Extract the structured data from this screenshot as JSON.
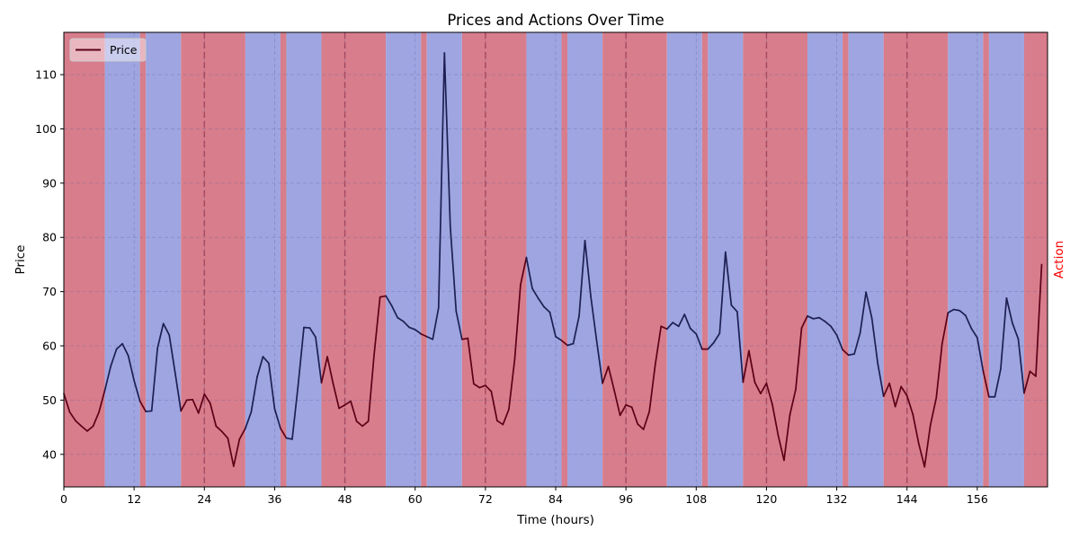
{
  "chart_data": {
    "type": "line",
    "title": "Prices and Actions Over Time",
    "xlabel": "Time (hours)",
    "ylabel": "Price",
    "y2label": "Action",
    "xlim": [
      0,
      168
    ],
    "ylim": [
      34,
      117.8
    ],
    "xticks": [
      0,
      12,
      24,
      36,
      48,
      60,
      72,
      84,
      96,
      108,
      120,
      132,
      144,
      156
    ],
    "yticks": [
      40,
      50,
      60,
      70,
      80,
      90,
      100,
      110
    ],
    "grid": true,
    "legend_placement": "top-left",
    "day_boundaries": [
      24,
      48,
      72,
      96,
      120,
      144
    ],
    "action_colors": {
      "sell": "#d77d8c",
      "buy": "#9ea5e0"
    },
    "line_colors": {
      "sell": "#5c0016",
      "buy": "#1d1f52"
    },
    "action_segments": [
      {
        "start": 0,
        "end": 7,
        "action": "sell"
      },
      {
        "start": 7,
        "end": 13,
        "action": "buy"
      },
      {
        "start": 13,
        "end": 14,
        "action": "sell"
      },
      {
        "start": 14,
        "end": 20,
        "action": "buy"
      },
      {
        "start": 20,
        "end": 31,
        "action": "sell"
      },
      {
        "start": 31,
        "end": 37,
        "action": "buy"
      },
      {
        "start": 37,
        "end": 38,
        "action": "sell"
      },
      {
        "start": 38,
        "end": 44,
        "action": "buy"
      },
      {
        "start": 44,
        "end": 55,
        "action": "sell"
      },
      {
        "start": 55,
        "end": 61,
        "action": "buy"
      },
      {
        "start": 61,
        "end": 62,
        "action": "sell"
      },
      {
        "start": 62,
        "end": 68,
        "action": "buy"
      },
      {
        "start": 68,
        "end": 79,
        "action": "sell"
      },
      {
        "start": 79,
        "end": 85,
        "action": "buy"
      },
      {
        "start": 85,
        "end": 86,
        "action": "sell"
      },
      {
        "start": 86,
        "end": 92,
        "action": "buy"
      },
      {
        "start": 92,
        "end": 103,
        "action": "sell"
      },
      {
        "start": 103,
        "end": 109,
        "action": "buy"
      },
      {
        "start": 109,
        "end": 110,
        "action": "sell"
      },
      {
        "start": 110,
        "end": 116,
        "action": "buy"
      },
      {
        "start": 116,
        "end": 127,
        "action": "sell"
      },
      {
        "start": 127,
        "end": 133,
        "action": "buy"
      },
      {
        "start": 133,
        "end": 134,
        "action": "sell"
      },
      {
        "start": 134,
        "end": 140,
        "action": "buy"
      },
      {
        "start": 140,
        "end": 151,
        "action": "sell"
      },
      {
        "start": 151,
        "end": 157,
        "action": "buy"
      },
      {
        "start": 157,
        "end": 158,
        "action": "sell"
      },
      {
        "start": 158,
        "end": 164,
        "action": "buy"
      },
      {
        "start": 164,
        "end": 168,
        "action": "sell"
      }
    ],
    "series": [
      {
        "name": "Price",
        "x": [
          0,
          1,
          2,
          3,
          4,
          5,
          6,
          7,
          8,
          9,
          10,
          11,
          12,
          13,
          14,
          15,
          16,
          17,
          18,
          19,
          20,
          21,
          22,
          23,
          24,
          25,
          26,
          27,
          28,
          29,
          30,
          31,
          32,
          33,
          34,
          35,
          36,
          37,
          38,
          39,
          40,
          41,
          42,
          43,
          44,
          45,
          46,
          47,
          48,
          49,
          50,
          51,
          52,
          53,
          54,
          55,
          56,
          57,
          58,
          59,
          60,
          61,
          62,
          63,
          64,
          65,
          66,
          67,
          68,
          69,
          70,
          71,
          72,
          73,
          74,
          75,
          76,
          77,
          78,
          79,
          80,
          81,
          82,
          83,
          84,
          85,
          86,
          87,
          88,
          89,
          90,
          91,
          92,
          93,
          94,
          95,
          96,
          97,
          98,
          99,
          100,
          101,
          102,
          103,
          104,
          105,
          106,
          107,
          108,
          109,
          110,
          111,
          112,
          113,
          114,
          115,
          116,
          117,
          118,
          119,
          120,
          121,
          122,
          123,
          124,
          125,
          126,
          127,
          128,
          129,
          130,
          131,
          132,
          133,
          134,
          135,
          136,
          137,
          138,
          139,
          140,
          141,
          142,
          143,
          144,
          145,
          146,
          147,
          148,
          149,
          150,
          151,
          152,
          153,
          154,
          155,
          156,
          157,
          158,
          159,
          160,
          161,
          162,
          163,
          164,
          165,
          166,
          167
        ],
        "values": [
          51.2,
          47.8,
          46.2,
          45.2,
          44.3,
          45.2,
          47.8,
          51.8,
          56.2,
          59.4,
          60.4,
          58.2,
          53.6,
          49.8,
          47.9,
          48.0,
          59.6,
          64.1,
          62.0,
          55.1,
          48.0,
          50.0,
          50.1,
          47.6,
          51.1,
          49.4,
          45.2,
          44.2,
          43.0,
          37.8,
          42.8,
          44.8,
          47.8,
          54.2,
          58.0,
          56.8,
          48.4,
          44.8,
          43.0,
          42.8,
          52.6,
          63.4,
          63.3,
          61.6,
          53.2,
          58.0,
          53.0,
          48.5,
          49.1,
          49.8,
          46.1,
          45.2,
          46.1,
          58.5,
          69.0,
          69.2,
          67.4,
          65.2,
          64.5,
          63.4,
          63.0,
          62.2,
          61.7,
          61.2,
          67.0,
          114.0,
          82.0,
          66.4,
          61.2,
          61.4,
          53.0,
          52.3,
          52.7,
          51.6,
          46.2,
          45.5,
          48.3,
          57.5,
          71.3,
          76.3,
          70.6,
          68.8,
          67.2,
          66.2,
          61.7,
          61.0,
          60.1,
          60.4,
          65.5,
          79.4,
          69.1,
          60.9,
          53.1,
          56.2,
          51.8,
          47.2,
          49.1,
          48.7,
          45.6,
          44.6,
          47.9,
          56.5,
          63.6,
          63.1,
          64.3,
          63.6,
          65.8,
          63.2,
          62.2,
          59.4,
          59.4,
          60.6,
          62.3,
          77.3,
          67.5,
          66.3,
          53.3,
          59.1,
          53.3,
          51.2,
          53.1,
          49.2,
          43.5,
          38.9,
          47.3,
          52.0,
          63.3,
          65.5,
          65.0,
          65.2,
          64.5,
          63.6,
          62.0,
          59.3,
          58.3,
          58.5,
          62.4,
          69.9,
          65.1,
          56.8,
          50.7,
          53.1,
          48.8,
          52.5,
          50.8,
          47.4,
          42.0,
          37.7,
          45.4,
          50.4,
          60.4,
          66.1,
          66.7,
          66.5,
          65.6,
          63.2,
          61.5,
          55.4,
          50.6,
          50.6,
          55.7,
          68.8,
          64.2,
          61.3,
          51.3,
          55.3,
          54.4,
          75.0
        ]
      }
    ]
  }
}
